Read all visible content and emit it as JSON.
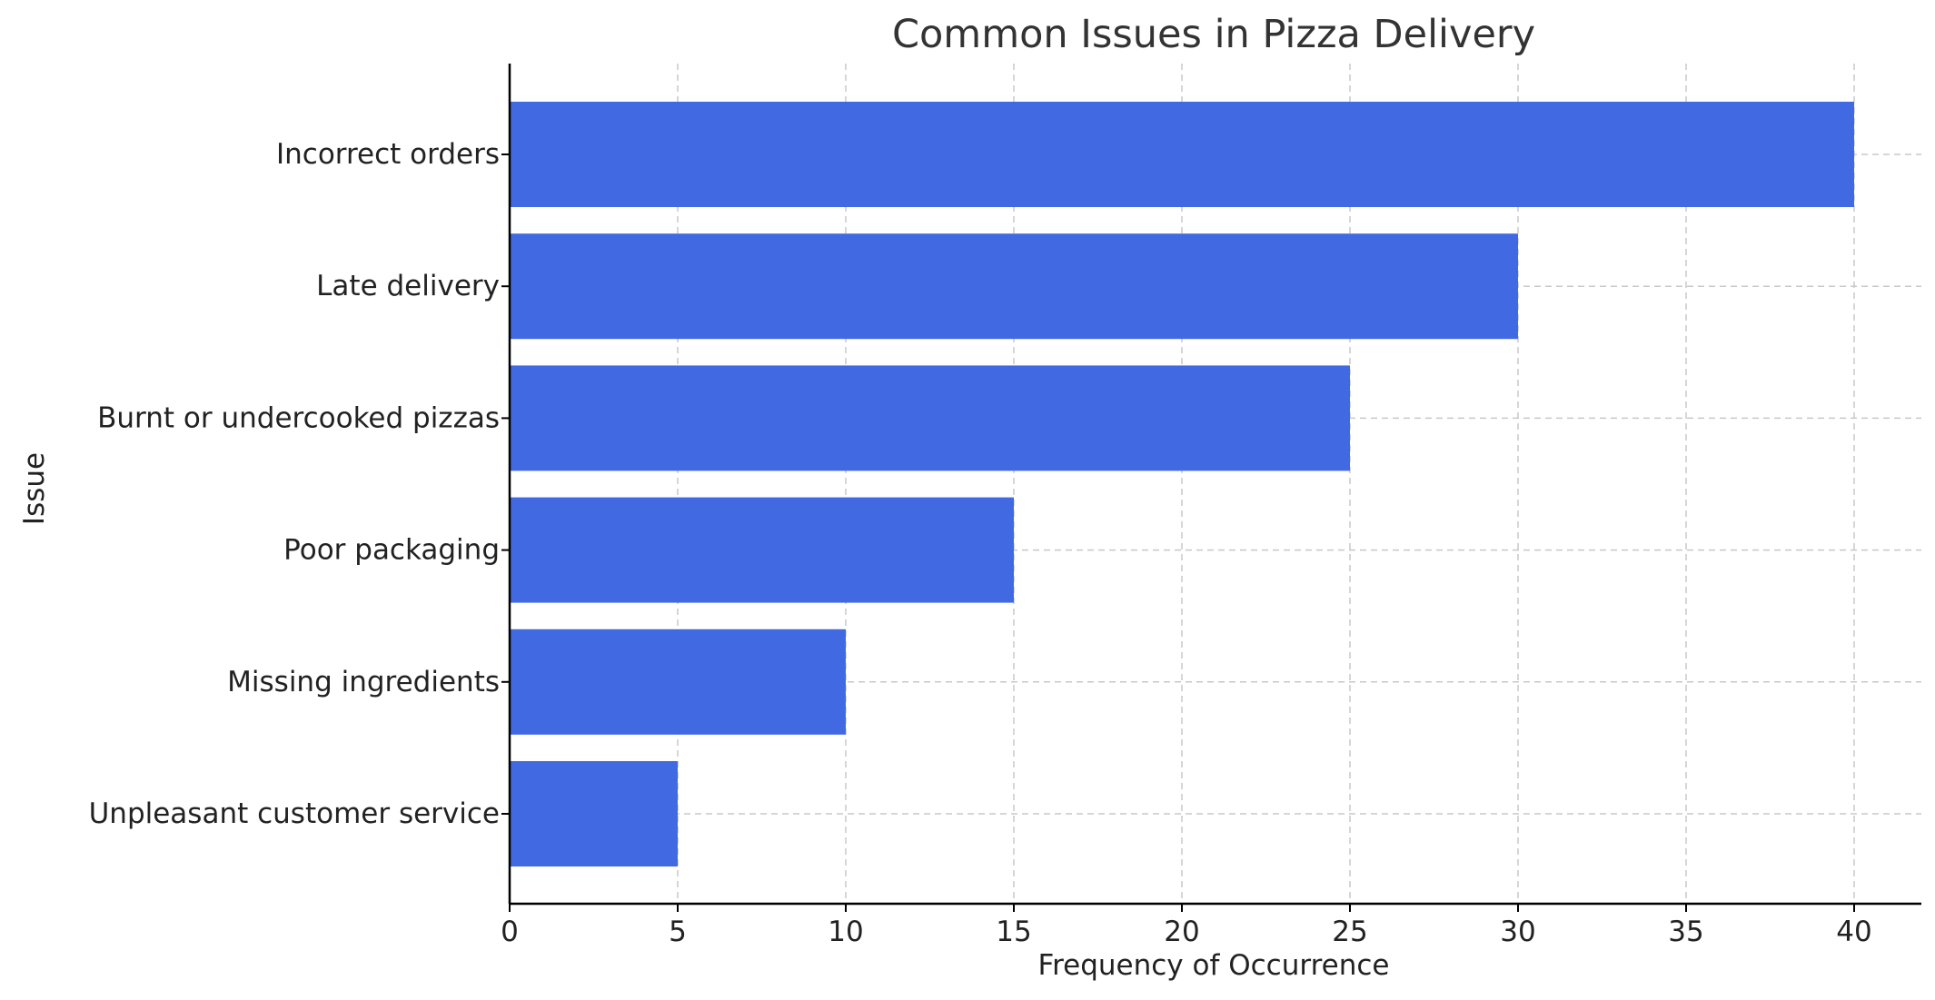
{
  "colors": {
    "bar": "#4169E1"
  },
  "chart_data": {
    "type": "bar",
    "orientation": "horizontal",
    "title": "Common Issues in Pizza Delivery",
    "xlabel": "Frequency of Occurrence",
    "ylabel": "Issue",
    "categories": [
      "Incorrect orders",
      "Late delivery",
      "Burnt or undercooked pizzas",
      "Poor packaging",
      "Missing ingredients",
      "Unpleasant customer service"
    ],
    "values": [
      40,
      30,
      25,
      15,
      10,
      5
    ],
    "xlim": [
      0,
      42
    ],
    "xticks": [
      0,
      5,
      10,
      15,
      20,
      25,
      30,
      35,
      40
    ],
    "grid": true
  }
}
